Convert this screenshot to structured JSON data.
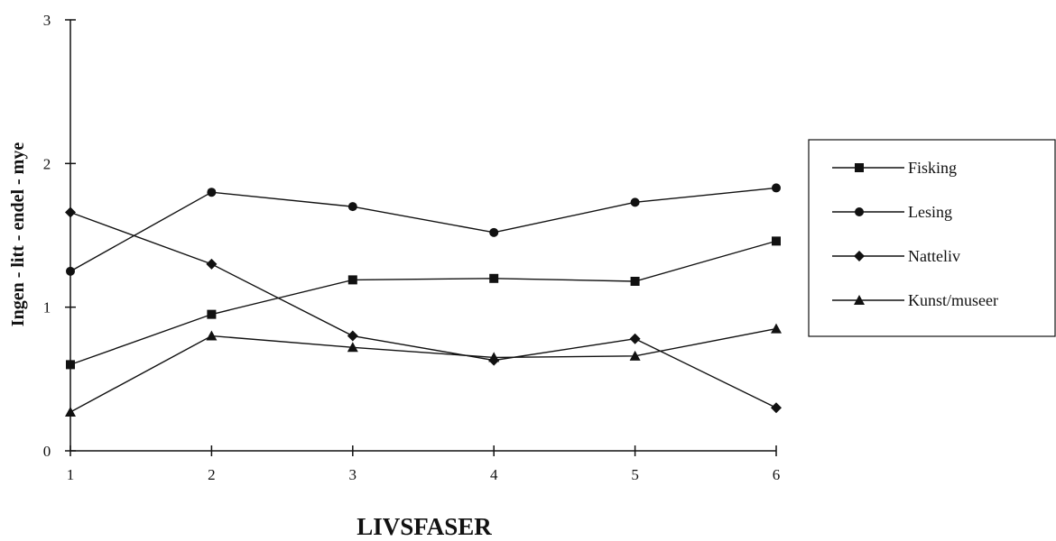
{
  "chart_data": {
    "type": "line",
    "x": [
      1,
      2,
      3,
      4,
      5,
      6
    ],
    "xlabel": "LIVSFASER",
    "ylabel": "Ingen - litt - endel - mye",
    "xlim": [
      1,
      6
    ],
    "ylim": [
      0,
      3
    ],
    "yticks": [
      0,
      1,
      2,
      3
    ],
    "grid": false,
    "legend_position": "right",
    "series": [
      {
        "name": "Fisking",
        "marker": "square",
        "values": [
          0.6,
          0.95,
          1.19,
          1.2,
          1.18,
          1.46
        ]
      },
      {
        "name": "Lesing",
        "marker": "circle",
        "values": [
          1.25,
          1.8,
          1.7,
          1.52,
          1.73,
          1.83
        ]
      },
      {
        "name": "Natteliv",
        "marker": "diamond",
        "values": [
          1.66,
          1.3,
          0.8,
          0.63,
          0.78,
          0.3
        ]
      },
      {
        "name": "Kunst/museer",
        "marker": "triangle",
        "values": [
          0.27,
          0.8,
          0.72,
          0.65,
          0.66,
          0.85
        ]
      }
    ]
  }
}
